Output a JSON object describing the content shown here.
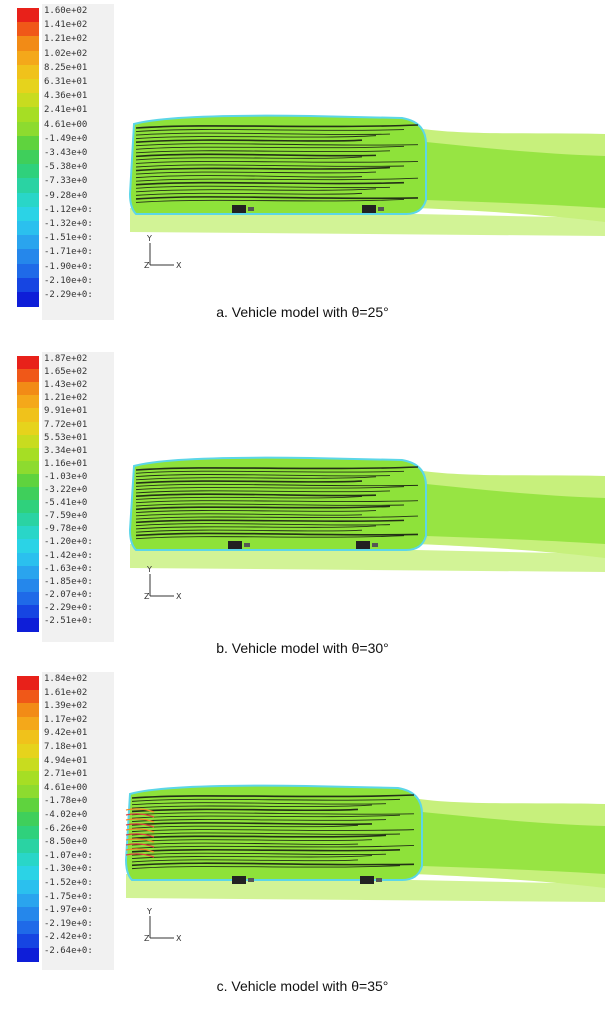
{
  "colors": {
    "scale": [
      "#e8211a",
      "#f05818",
      "#f28b16",
      "#f4a81a",
      "#f0c21b",
      "#e6d31c",
      "#c8dc1f",
      "#a6de24",
      "#8ddb2f",
      "#5fd33e",
      "#3fcf5b",
      "#2fd17c",
      "#2ad3a3",
      "#29d6c8",
      "#2bd3e6",
      "#2bc0ee",
      "#2aa4ee",
      "#2587eb",
      "#1f6ae8",
      "#1645e2",
      "#0e1ed8"
    ],
    "field_green": "#8ee23a",
    "field_light": "#c7f07c",
    "edge_cyan": "#5cd6e8",
    "streamline": "#111111"
  },
  "panels": [
    {
      "id": "a",
      "caption": "a. Vehicle model with θ=25°",
      "legend": [
        "1.60e+02",
        "1.41e+02",
        "1.21e+02",
        "1.02e+02",
        "8.25e+01",
        "6.31e+01",
        "4.36e+01",
        "2.41e+01",
        "4.61e+00",
        "-1.49e+0",
        "-3.43e+0",
        "-5.38e+0",
        "-7.33e+0",
        "-9.28e+0",
        "-1.12e+0:",
        "-1.32e+0:",
        "-1.51e+0:",
        "-1.71e+0:",
        "-1.90e+0:",
        "-2.10e+0:",
        "-2.29e+0:"
      ],
      "axis_y": "Y",
      "axis_x": "X"
    },
    {
      "id": "b",
      "caption": "b. Vehicle model with θ=30°",
      "legend": [
        "1.87e+02",
        "1.65e+02",
        "1.43e+02",
        "1.21e+02",
        "9.91e+01",
        "7.72e+01",
        "5.53e+01",
        "3.34e+01",
        "1.16e+01",
        "-1.03e+0",
        "-3.22e+0",
        "-5.41e+0",
        "-7.59e+0",
        "-9.78e+0",
        "-1.20e+0:",
        "-1.42e+0:",
        "-1.63e+0:",
        "-1.85e+0:",
        "-2.07e+0:",
        "-2.29e+0:",
        "-2.51e+0:"
      ],
      "axis_y": "Y",
      "axis_x": "X"
    },
    {
      "id": "c",
      "caption": "c. Vehicle model with θ=35°",
      "legend": [
        "1.84e+02",
        "1.61e+02",
        "1.39e+02",
        "1.17e+02",
        "9.42e+01",
        "7.18e+01",
        "4.94e+01",
        "2.71e+01",
        "4.61e+00",
        "-1.78e+0",
        "-4.02e+0",
        "-6.26e+0",
        "-8.50e+0",
        "-1.07e+0:",
        "-1.30e+0:",
        "-1.52e+0:",
        "-1.75e+0:",
        "-1.97e+0:",
        "-2.19e+0:",
        "-2.42e+0:",
        "-2.64e+0:"
      ],
      "axis_y": "Y",
      "axis_x": "X"
    }
  ]
}
